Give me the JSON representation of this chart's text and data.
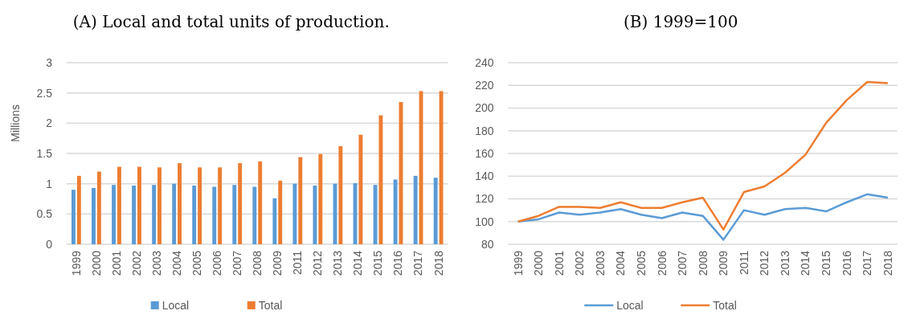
{
  "chart_data": [
    {
      "type": "bar",
      "title": "(A) Local and total units of production.",
      "ylabel": "Millions",
      "categories": [
        "1999",
        "2000",
        "2001",
        "2002",
        "2003",
        "2004",
        "2005",
        "2006",
        "2007",
        "2008",
        "2009",
        "2011",
        "2012",
        "2013",
        "2014",
        "2015",
        "2016",
        "2017",
        "2018"
      ],
      "series": [
        {
          "name": "Local",
          "color": "#5b9bd5",
          "values": [
            0.9,
            0.93,
            0.98,
            0.97,
            0.98,
            1.0,
            0.97,
            0.95,
            0.98,
            0.95,
            0.76,
            1.0,
            0.97,
            1.0,
            1.01,
            0.98,
            1.07,
            1.13,
            1.1
          ]
        },
        {
          "name": "Total",
          "color": "#ed7d31",
          "values": [
            1.13,
            1.2,
            1.28,
            1.28,
            1.27,
            1.34,
            1.27,
            1.27,
            1.34,
            1.37,
            1.05,
            1.44,
            1.49,
            1.62,
            1.81,
            2.13,
            2.35,
            2.53,
            2.53
          ]
        }
      ],
      "ylim": [
        0,
        3
      ],
      "yticks": [
        0,
        0.5,
        1,
        1.5,
        2,
        2.5,
        3
      ],
      "grid": "y",
      "legend": "bottom"
    },
    {
      "type": "line",
      "title": "(B) 1999=100",
      "categories": [
        "1999",
        "2000",
        "2001",
        "2002",
        "2003",
        "2004",
        "2005",
        "2006",
        "2007",
        "2008",
        "2009",
        "2011",
        "2012",
        "2013",
        "2014",
        "2015",
        "2016",
        "2017",
        "2018"
      ],
      "series": [
        {
          "name": "Local",
          "color": "#5b9bd5",
          "values": [
            100,
            102,
            108,
            106,
            108,
            111,
            106,
            103,
            108,
            105,
            84,
            110,
            106,
            111,
            112,
            109,
            117,
            124,
            121
          ]
        },
        {
          "name": "Total",
          "color": "#ed7d31",
          "values": [
            100,
            105,
            113,
            113,
            112,
            117,
            112,
            112,
            117,
            121,
            93,
            126,
            131,
            143,
            159,
            187,
            207,
            223,
            222
          ]
        }
      ],
      "ylim": [
        80,
        240
      ],
      "yticks": [
        80,
        100,
        120,
        140,
        160,
        180,
        200,
        220,
        240
      ],
      "grid": "y",
      "legend": "bottom",
      "marker": "none"
    }
  ]
}
